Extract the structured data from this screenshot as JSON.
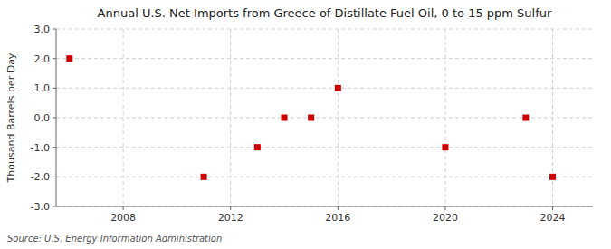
{
  "chart_data": {
    "type": "scatter",
    "title": "Annual U.S. Net Imports from Greece of Distillate Fuel Oil, 0 to 15 ppm Sulfur",
    "ylabel": "Thousand Barrels per Day",
    "annotation": "Source: U.S. Energy Information Administration",
    "x": [
      2006,
      2011,
      2013,
      2014,
      2015,
      2016,
      2020,
      2023,
      2024
    ],
    "values": [
      2.0,
      -2.0,
      -1.0,
      0.0,
      0.0,
      1.0,
      -1.0,
      0.0,
      -2.0
    ],
    "color": "#cc0000",
    "marker": "square",
    "xlim": [
      2005.5,
      2025.5
    ],
    "ylim": [
      -3.0,
      3.0
    ],
    "xticks": [
      2008,
      2012,
      2016,
      2020,
      2024
    ],
    "yticks": [
      {
        "value": -3.0,
        "label": "-3.0"
      },
      {
        "value": -2.0,
        "label": "-2.0"
      },
      {
        "value": -1.0,
        "label": "-1.0"
      },
      {
        "value": 0.0,
        "label": "0.0"
      },
      {
        "value": 1.0,
        "label": "1.0"
      },
      {
        "value": 2.0,
        "label": "2.0"
      },
      {
        "value": 3.0,
        "label": "3.0"
      }
    ],
    "grid": true
  }
}
